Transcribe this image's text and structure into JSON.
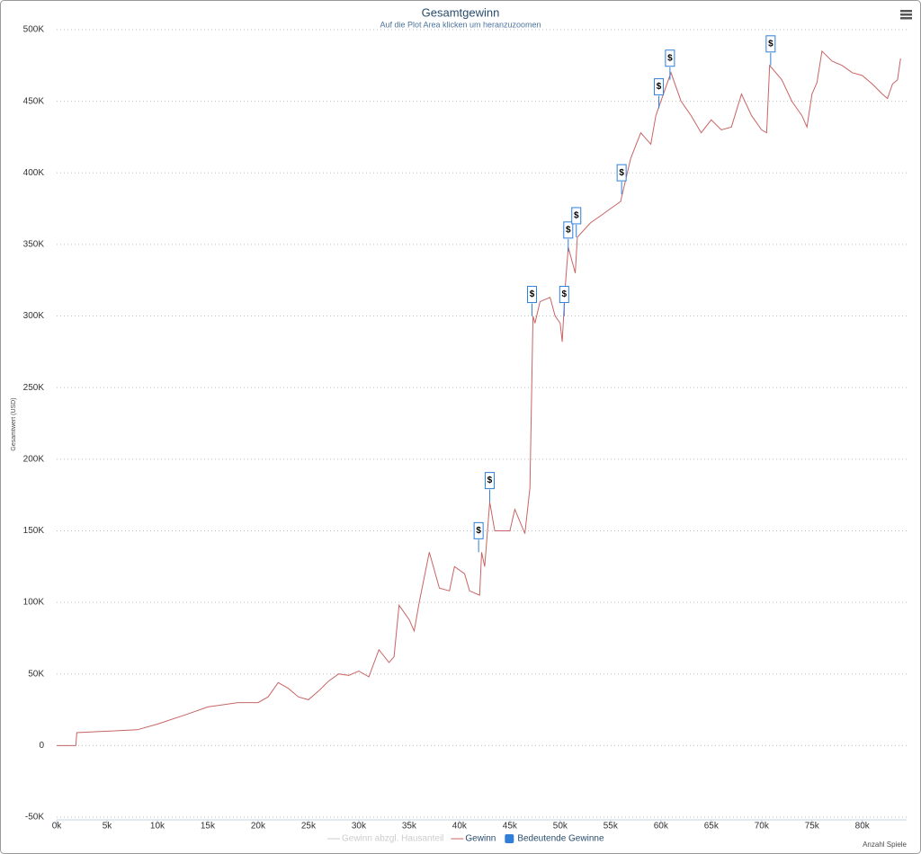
{
  "chart_data": {
    "type": "line",
    "title": "Gesamtgewinn",
    "subtitle": "Auf die Plot Area klicken um heranzuzoomen",
    "x_label": "Anzahl Spiele",
    "y_label": "Gesamtwert (USD)",
    "xlim": [
      0,
      84400
    ],
    "ylim": [
      -50000,
      500000
    ],
    "xticks": [
      {
        "value": 0,
        "label": "0k"
      },
      {
        "value": 5000,
        "label": "5k"
      },
      {
        "value": 10000,
        "label": "10k"
      },
      {
        "value": 15000,
        "label": "15k"
      },
      {
        "value": 20000,
        "label": "20k"
      },
      {
        "value": 25000,
        "label": "25k"
      },
      {
        "value": 30000,
        "label": "30k"
      },
      {
        "value": 35000,
        "label": "35k"
      },
      {
        "value": 40000,
        "label": "40k"
      },
      {
        "value": 45000,
        "label": "45k"
      },
      {
        "value": 50000,
        "label": "50k"
      },
      {
        "value": 55000,
        "label": "55k"
      },
      {
        "value": 60000,
        "label": "60k"
      },
      {
        "value": 65000,
        "label": "65k"
      },
      {
        "value": 70000,
        "label": "70k"
      },
      {
        "value": 75000,
        "label": "75k"
      },
      {
        "value": 80000,
        "label": "80k"
      }
    ],
    "yticks": [
      {
        "value": -50000,
        "label": "-50K"
      },
      0,
      {
        "value": 50000,
        "label": "50K"
      },
      {
        "value": 100000,
        "label": "100K"
      },
      {
        "value": 150000,
        "label": "150K"
      },
      {
        "value": 200000,
        "label": "200K"
      },
      {
        "value": 250000,
        "label": "250K"
      },
      {
        "value": 300000,
        "label": "300K"
      },
      {
        "value": 350000,
        "label": "350K"
      },
      {
        "value": 400000,
        "label": "400K"
      },
      {
        "value": 450000,
        "label": "450K"
      },
      {
        "value": 500000,
        "label": "500K"
      }
    ],
    "grid": true,
    "x": [
      0,
      1900,
      2000,
      5000,
      8000,
      10000,
      13000,
      15000,
      18000,
      20000,
      21000,
      22000,
      23000,
      24000,
      25000,
      26000,
      27000,
      28000,
      29000,
      30000,
      31000,
      32000,
      33000,
      33500,
      34000,
      35000,
      35500,
      36000,
      37000,
      38000,
      39000,
      39500,
      40500,
      41000,
      42000,
      42200,
      42500,
      43000,
      43500,
      45000,
      45500,
      46500,
      47000,
      47300,
      47500,
      48000,
      49000,
      49500,
      50000,
      50200,
      50500,
      50800,
      51500,
      51700,
      53000,
      54000,
      55000,
      56000,
      56500,
      57000,
      58000,
      59000,
      59500,
      60000,
      61000,
      62000,
      63000,
      64000,
      65000,
      66000,
      67000,
      68000,
      69000,
      70000,
      70500,
      70800,
      72000,
      73000,
      74000,
      74500,
      75000,
      75500,
      76000,
      77000,
      78000,
      79000,
      80000,
      81000,
      82000,
      82500,
      83000,
      83500,
      83800
    ],
    "series": [
      {
        "name": "Gewinn abzgl. Hausanteil",
        "color": "#cccccc",
        "visible": false
      },
      {
        "name": "Gewinn",
        "color": "#c86464",
        "values": [
          0,
          0,
          9000,
          10000,
          11000,
          15000,
          22000,
          27000,
          30000,
          30000,
          34000,
          44000,
          40000,
          34000,
          32000,
          38000,
          45000,
          50000,
          49000,
          52000,
          48000,
          67000,
          58000,
          62000,
          98000,
          88000,
          80000,
          100000,
          135000,
          110000,
          108000,
          125000,
          120000,
          108000,
          105000,
          135000,
          125000,
          170000,
          150000,
          150000,
          165000,
          148000,
          180000,
          300000,
          295000,
          310000,
          313000,
          300000,
          295000,
          282000,
          320000,
          348000,
          330000,
          355000,
          365000,
          370000,
          375000,
          380000,
          395000,
          410000,
          428000,
          420000,
          440000,
          450000,
          470000,
          450000,
          440000,
          428000,
          437000,
          430000,
          432000,
          455000,
          440000,
          430000,
          428000,
          475000,
          465000,
          450000,
          440000,
          432000,
          455000,
          463000,
          485000,
          478000,
          475000,
          470000,
          468000,
          462000,
          455000,
          452000,
          462000,
          465000,
          480000
        ]
      },
      {
        "name": "Bedeutende Gewinne",
        "type": "flags",
        "color": "#2f7ed8",
        "title": "$",
        "x": [
          41900,
          43000,
          47200,
          50400,
          50800,
          51600,
          56100,
          59800,
          60900,
          70900
        ],
        "values": [
          135000,
          170000,
          300000,
          300000,
          345000,
          355000,
          385000,
          445000,
          465000,
          475000
        ]
      }
    ]
  }
}
